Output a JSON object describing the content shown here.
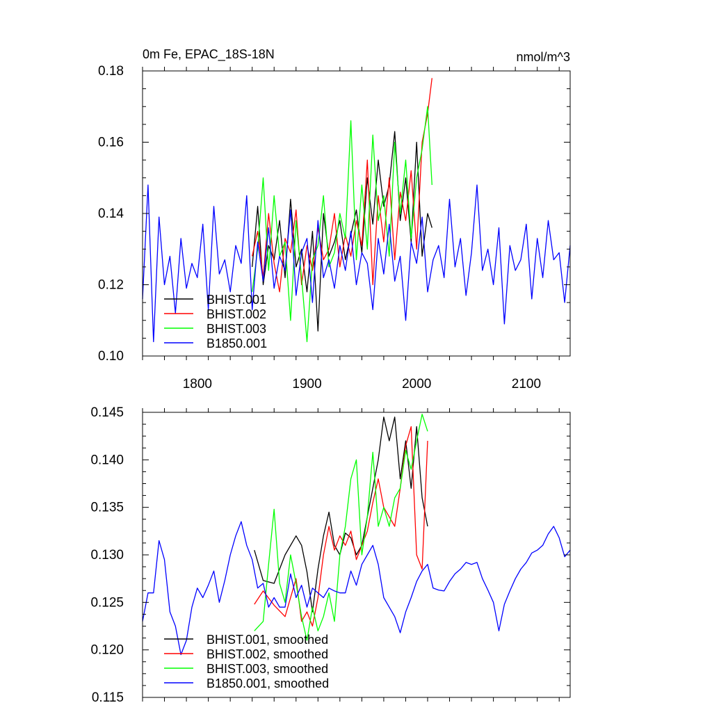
{
  "chart_data": [
    {
      "type": "line",
      "title": "0m Fe, EPAC_18S-18N",
      "units": "nmol/m^3",
      "xlim": [
        1750,
        2140
      ],
      "ylim": [
        0.1,
        0.18
      ],
      "xticks": [
        1800,
        1900,
        2000,
        2100
      ],
      "xtick_labels": [
        "1800",
        "1900",
        "2000",
        "2100"
      ],
      "yticks": [
        0.1,
        0.12,
        0.14,
        0.16,
        0.18
      ],
      "ytick_labels": [
        "0.10",
        "0.12",
        "0.14",
        "0.16",
        "0.18"
      ],
      "legend_position": "bottom-left",
      "series": [
        {
          "name": "BHIST.001",
          "color": "#000000",
          "x": [
            1850,
            1855,
            1860,
            1865,
            1870,
            1875,
            1880,
            1885,
            1890,
            1895,
            1900,
            1905,
            1910,
            1915,
            1920,
            1925,
            1930,
            1935,
            1940,
            1945,
            1950,
            1955,
            1960,
            1965,
            1970,
            1975,
            1980,
            1985,
            1990,
            1995,
            2000,
            2005,
            2010,
            2014
          ],
          "values": [
            0.125,
            0.142,
            0.12,
            0.131,
            0.127,
            0.138,
            0.122,
            0.144,
            0.125,
            0.13,
            0.118,
            0.135,
            0.107,
            0.14,
            0.128,
            0.132,
            0.138,
            0.127,
            0.134,
            0.141,
            0.129,
            0.15,
            0.137,
            0.155,
            0.142,
            0.148,
            0.163,
            0.138,
            0.15,
            0.132,
            0.16,
            0.128,
            0.14,
            0.136
          ]
        },
        {
          "name": "BHIST.002",
          "color": "#ff0000",
          "x": [
            1850,
            1855,
            1860,
            1865,
            1870,
            1875,
            1880,
            1885,
            1890,
            1895,
            1900,
            1905,
            1910,
            1915,
            1920,
            1925,
            1930,
            1935,
            1940,
            1945,
            1950,
            1955,
            1960,
            1965,
            1970,
            1975,
            1980,
            1985,
            1990,
            1995,
            2000,
            2005,
            2010,
            2014
          ],
          "values": [
            0.128,
            0.135,
            0.122,
            0.14,
            0.126,
            0.118,
            0.133,
            0.129,
            0.141,
            0.12,
            0.131,
            0.124,
            0.136,
            0.127,
            0.13,
            0.14,
            0.125,
            0.134,
            0.128,
            0.138,
            0.131,
            0.155,
            0.12,
            0.145,
            0.132,
            0.15,
            0.127,
            0.146,
            0.138,
            0.152,
            0.13,
            0.16,
            0.168,
            0.178
          ]
        },
        {
          "name": "BHIST.003",
          "color": "#00ff00",
          "x": [
            1850,
            1855,
            1860,
            1865,
            1870,
            1875,
            1880,
            1885,
            1890,
            1895,
            1900,
            1905,
            1910,
            1915,
            1920,
            1925,
            1930,
            1935,
            1940,
            1945,
            1950,
            1955,
            1960,
            1965,
            1970,
            1975,
            1980,
            1985,
            1990,
            1995,
            2000,
            2005,
            2010,
            2014
          ],
          "values": [
            0.118,
            0.13,
            0.15,
            0.124,
            0.145,
            0.128,
            0.132,
            0.11,
            0.138,
            0.122,
            0.104,
            0.127,
            0.131,
            0.145,
            0.125,
            0.129,
            0.14,
            0.133,
            0.166,
            0.127,
            0.148,
            0.13,
            0.162,
            0.138,
            0.145,
            0.128,
            0.16,
            0.14,
            0.155,
            0.133,
            0.15,
            0.158,
            0.17,
            0.148
          ]
        },
        {
          "name": "B1850.001",
          "color": "#0000ff",
          "x": [
            1750,
            1755,
            1760,
            1765,
            1770,
            1775,
            1780,
            1785,
            1790,
            1795,
            1800,
            1805,
            1810,
            1815,
            1820,
            1825,
            1830,
            1835,
            1840,
            1845,
            1850,
            1855,
            1860,
            1865,
            1870,
            1875,
            1880,
            1885,
            1890,
            1895,
            1900,
            1905,
            1910,
            1915,
            1920,
            1925,
            1930,
            1935,
            1940,
            1945,
            1950,
            1955,
            1960,
            1965,
            1970,
            1975,
            1980,
            1985,
            1990,
            1995,
            2000,
            2005,
            2010,
            2015,
            2020,
            2025,
            2030,
            2035,
            2040,
            2045,
            2050,
            2055,
            2060,
            2065,
            2070,
            2075,
            2080,
            2085,
            2090,
            2095,
            2100,
            2105,
            2110,
            2115,
            2120,
            2125,
            2130,
            2135,
            2140
          ],
          "values": [
            0.116,
            0.148,
            0.104,
            0.139,
            0.12,
            0.128,
            0.112,
            0.133,
            0.119,
            0.126,
            0.122,
            0.137,
            0.113,
            0.142,
            0.123,
            0.127,
            0.118,
            0.131,
            0.126,
            0.145,
            0.113,
            0.132,
            0.121,
            0.136,
            0.119,
            0.128,
            0.124,
            0.141,
            0.117,
            0.129,
            0.133,
            0.115,
            0.138,
            0.122,
            0.127,
            0.119,
            0.131,
            0.124,
            0.135,
            0.12,
            0.129,
            0.126,
            0.113,
            0.133,
            0.123,
            0.137,
            0.121,
            0.128,
            0.11,
            0.132,
            0.126,
            0.139,
            0.118,
            0.127,
            0.131,
            0.122,
            0.144,
            0.125,
            0.133,
            0.117,
            0.129,
            0.148,
            0.124,
            0.13,
            0.12,
            0.136,
            0.109,
            0.131,
            0.124,
            0.127,
            0.137,
            0.116,
            0.133,
            0.122,
            0.138,
            0.127,
            0.129,
            0.115,
            0.131
          ]
        }
      ]
    },
    {
      "type": "line",
      "xlim": [
        1750,
        2140
      ],
      "ylim": [
        0.115,
        0.145
      ],
      "xticks": [
        1800,
        1900,
        2000,
        2100
      ],
      "yticks": [
        0.115,
        0.12,
        0.125,
        0.13,
        0.135,
        0.14,
        0.145
      ],
      "ytick_labels": [
        "0.115",
        "0.120",
        "0.125",
        "0.130",
        "0.135",
        "0.140",
        "0.145"
      ],
      "legend_position": "bottom-left",
      "series": [
        {
          "name": "BHIST.001, smoothed",
          "color": "#000000",
          "x": [
            1852,
            1860,
            1870,
            1880,
            1890,
            1895,
            1900,
            1905,
            1910,
            1915,
            1920,
            1925,
            1930,
            1935,
            1940,
            1945,
            1950,
            1955,
            1960,
            1965,
            1970,
            1975,
            1980,
            1985,
            1990,
            1995,
            2000,
            2005,
            2010
          ],
          "values": [
            0.1305,
            0.1273,
            0.127,
            0.13,
            0.132,
            0.131,
            0.1282,
            0.124,
            0.1285,
            0.132,
            0.1345,
            0.131,
            0.13,
            0.1323,
            0.1318,
            0.13,
            0.131,
            0.134,
            0.137,
            0.14,
            0.1445,
            0.142,
            0.1445,
            0.138,
            0.142,
            0.137,
            0.1435,
            0.136,
            0.133
          ]
        },
        {
          "name": "BHIST.002, smoothed",
          "color": "#ff0000",
          "x": [
            1852,
            1860,
            1870,
            1880,
            1890,
            1895,
            1900,
            1905,
            1910,
            1915,
            1920,
            1925,
            1930,
            1935,
            1940,
            1945,
            1950,
            1955,
            1960,
            1965,
            1970,
            1975,
            1980,
            1985,
            1990,
            1995,
            2000,
            2005,
            2010
          ],
          "values": [
            0.1248,
            0.1262,
            0.1247,
            0.1235,
            0.1275,
            0.123,
            0.124,
            0.1225,
            0.1255,
            0.13,
            0.133,
            0.1305,
            0.132,
            0.131,
            0.1325,
            0.1295,
            0.131,
            0.1325,
            0.1355,
            0.138,
            0.135,
            0.134,
            0.133,
            0.137,
            0.1415,
            0.1435,
            0.13,
            0.1285,
            0.142
          ]
        },
        {
          "name": "BHIST.003, smoothed",
          "color": "#00ff00",
          "x": [
            1852,
            1860,
            1865,
            1870,
            1875,
            1880,
            1885,
            1890,
            1895,
            1900,
            1905,
            1910,
            1915,
            1920,
            1925,
            1930,
            1935,
            1940,
            1945,
            1950,
            1955,
            1960,
            1965,
            1970,
            1975,
            1980,
            1985,
            1990,
            1995,
            2000,
            2005,
            2010
          ],
          "values": [
            0.122,
            0.123,
            0.129,
            0.1348,
            0.127,
            0.125,
            0.13,
            0.127,
            0.1235,
            0.121,
            0.1245,
            0.122,
            0.1235,
            0.126,
            0.123,
            0.13,
            0.133,
            0.138,
            0.14,
            0.13,
            0.134,
            0.1408,
            0.133,
            0.135,
            0.133,
            0.136,
            0.137,
            0.141,
            0.139,
            0.142,
            0.1448,
            0.143
          ]
        },
        {
          "name": "B1850.001, smoothed",
          "color": "#0000ff",
          "x": [
            1750,
            1755,
            1760,
            1765,
            1770,
            1775,
            1780,
            1785,
            1790,
            1795,
            1800,
            1805,
            1810,
            1815,
            1820,
            1825,
            1830,
            1835,
            1840,
            1845,
            1850,
            1855,
            1860,
            1865,
            1870,
            1875,
            1880,
            1885,
            1890,
            1895,
            1900,
            1905,
            1910,
            1915,
            1920,
            1925,
            1930,
            1935,
            1940,
            1945,
            1950,
            1955,
            1960,
            1965,
            1970,
            1975,
            1980,
            1985,
            1990,
            1995,
            2000,
            2005,
            2010,
            2015,
            2020,
            2025,
            2030,
            2035,
            2040,
            2045,
            2050,
            2055,
            2060,
            2065,
            2070,
            2075,
            2080,
            2085,
            2090,
            2095,
            2100,
            2105,
            2110,
            2115,
            2120,
            2125,
            2130,
            2135,
            2140
          ],
          "values": [
            0.123,
            0.126,
            0.126,
            0.1315,
            0.1295,
            0.124,
            0.1225,
            0.1195,
            0.121,
            0.1245,
            0.1265,
            0.1255,
            0.1268,
            0.1283,
            0.125,
            0.1273,
            0.13,
            0.132,
            0.1335,
            0.131,
            0.1295,
            0.1265,
            0.127,
            0.1245,
            0.1255,
            0.1245,
            0.1245,
            0.128,
            0.1255,
            0.1268,
            0.1245,
            0.1265,
            0.126,
            0.1255,
            0.1265,
            0.1262,
            0.126,
            0.126,
            0.1283,
            0.1268,
            0.129,
            0.13,
            0.131,
            0.129,
            0.1255,
            0.1245,
            0.1235,
            0.1218,
            0.124,
            0.1255,
            0.1272,
            0.1283,
            0.129,
            0.1265,
            0.1263,
            0.1262,
            0.1272,
            0.128,
            0.1285,
            0.1292,
            0.129,
            0.1292,
            0.1275,
            0.1263,
            0.125,
            0.122,
            0.1248,
            0.1262,
            0.1275,
            0.1285,
            0.1292,
            0.1302,
            0.1305,
            0.131,
            0.1322,
            0.133,
            0.1318,
            0.1298,
            0.1305
          ]
        }
      ]
    }
  ]
}
